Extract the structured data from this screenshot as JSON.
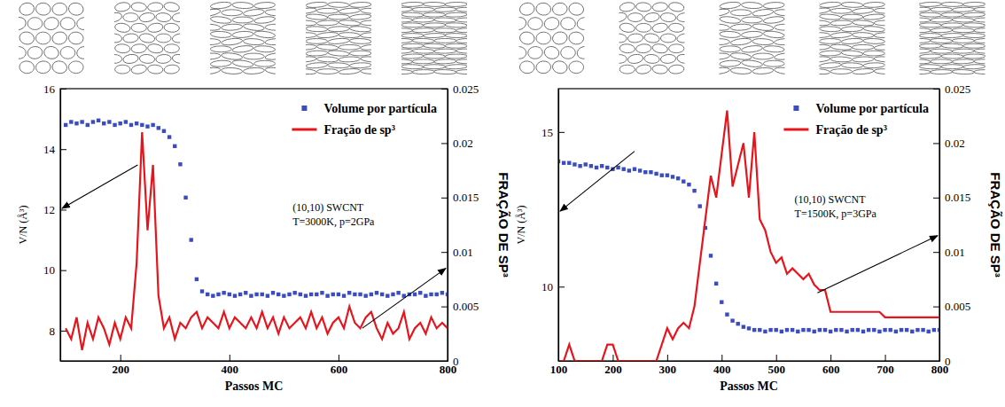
{
  "chart_data": [
    {
      "type": "line",
      "x_label": "Passos MC",
      "y_label": "V/N (Å³)",
      "y2_label": "FRAÇÃO DE SP³",
      "annotations": [
        "(10,10) SWCNT",
        "T=3000K, p=2GPa"
      ],
      "legend": "upper right",
      "x": [
        100,
        110,
        120,
        130,
        140,
        150,
        160,
        170,
        180,
        190,
        200,
        210,
        220,
        230,
        240,
        250,
        260,
        270,
        280,
        290,
        300,
        310,
        320,
        330,
        340,
        350,
        360,
        370,
        380,
        390,
        400,
        410,
        420,
        430,
        440,
        450,
        460,
        470,
        480,
        490,
        500,
        510,
        520,
        530,
        540,
        550,
        560,
        570,
        580,
        590,
        600,
        610,
        620,
        630,
        640,
        650,
        660,
        670,
        680,
        690,
        700,
        710,
        720,
        730,
        740,
        750,
        760,
        770,
        780,
        790,
        800
      ],
      "xlim": [
        90,
        800
      ],
      "xticks": [
        200,
        400,
        600,
        800
      ],
      "ylim": [
        7,
        16
      ],
      "yticks": [
        8,
        10,
        12,
        14,
        16
      ],
      "y2lim": [
        0,
        0.025
      ],
      "y2ticks": [
        0,
        0.005,
        0.01,
        0.015,
        0.02,
        0.025
      ],
      "series": [
        {
          "name": "Volume por partícula",
          "type": "scatter",
          "marker": "square",
          "color": "#3a4cc0",
          "values": [
            14.8,
            14.9,
            14.85,
            14.9,
            14.8,
            14.9,
            14.95,
            14.85,
            14.9,
            14.8,
            14.85,
            14.9,
            14.8,
            14.85,
            14.8,
            14.75,
            14.8,
            14.7,
            14.6,
            14.4,
            14.1,
            13.5,
            12.4,
            11.0,
            9.7,
            9.3,
            9.2,
            9.15,
            9.2,
            9.25,
            9.2,
            9.15,
            9.2,
            9.25,
            9.15,
            9.2,
            9.2,
            9.15,
            9.25,
            9.2,
            9.15,
            9.2,
            9.25,
            9.2,
            9.15,
            9.2,
            9.2,
            9.25,
            9.15,
            9.2,
            9.2,
            9.15,
            9.25,
            9.2,
            9.2,
            9.15,
            9.2,
            9.25,
            9.2,
            9.15,
            9.2,
            9.25,
            9.15,
            9.2,
            9.2,
            9.25,
            9.15,
            9.2,
            9.2,
            9.25,
            9.2
          ]
        },
        {
          "name": "Fração de sp³",
          "type": "line",
          "axis": "y2",
          "color": "#e8141c",
          "values": [
            0.003,
            0.002,
            0.004,
            0.001,
            0.0035,
            0.002,
            0.004,
            0.003,
            0.0015,
            0.0035,
            0.002,
            0.004,
            0.003,
            0.009,
            0.021,
            0.012,
            0.018,
            0.006,
            0.003,
            0.004,
            0.002,
            0.0035,
            0.003,
            0.004,
            0.0045,
            0.003,
            0.004,
            0.0035,
            0.003,
            0.0045,
            0.003,
            0.004,
            0.0035,
            0.003,
            0.004,
            0.003,
            0.0045,
            0.003,
            0.004,
            0.0025,
            0.004,
            0.003,
            0.0035,
            0.004,
            0.003,
            0.0045,
            0.003,
            0.004,
            0.0025,
            0.0035,
            0.004,
            0.003,
            0.005,
            0.0035,
            0.003,
            0.004,
            0.0045,
            0.003,
            0.002,
            0.0035,
            0.0025,
            0.003,
            0.0045,
            0.002,
            0.003,
            0.0035,
            0.0025,
            0.004,
            0.003,
            0.0035,
            0.003
          ]
        }
      ]
    },
    {
      "type": "line",
      "x_label": "Passos MC",
      "y_label": "V/N (Å³)",
      "y2_label": "FRAÇÃO DE SP³",
      "annotations": [
        "(10,10) SWCNT",
        "T=1500K, p=3GPa"
      ],
      "legend": "upper right",
      "x": [
        100,
        110,
        120,
        130,
        140,
        150,
        160,
        170,
        180,
        190,
        200,
        210,
        220,
        230,
        240,
        250,
        260,
        270,
        280,
        290,
        300,
        310,
        320,
        330,
        340,
        350,
        360,
        370,
        380,
        390,
        400,
        410,
        420,
        430,
        440,
        450,
        460,
        470,
        480,
        490,
        500,
        510,
        520,
        530,
        540,
        550,
        560,
        570,
        580,
        590,
        600,
        610,
        620,
        630,
        640,
        650,
        660,
        670,
        680,
        690,
        700,
        710,
        720,
        730,
        740,
        750,
        760,
        770,
        780,
        790,
        800
      ],
      "xlim": [
        100,
        800
      ],
      "xticks": [
        100,
        200,
        300,
        400,
        500,
        600,
        700,
        800
      ],
      "ylim": [
        7.6,
        16.4
      ],
      "yticks": [
        10,
        15
      ],
      "y2lim": [
        0,
        0.025
      ],
      "y2ticks": [
        0,
        0.005,
        0.01,
        0.015,
        0.02,
        0.025
      ],
      "series": [
        {
          "name": "Volume por partícula",
          "type": "scatter",
          "marker": "square",
          "color": "#3a4cc0",
          "values": [
            14.05,
            14.0,
            14.0,
            13.95,
            13.9,
            13.95,
            13.9,
            13.85,
            13.9,
            13.85,
            13.8,
            13.85,
            13.8,
            13.75,
            13.8,
            13.75,
            13.7,
            13.7,
            13.65,
            13.6,
            13.6,
            13.55,
            13.5,
            13.4,
            13.3,
            13.1,
            12.6,
            11.9,
            11.0,
            10.1,
            9.5,
            9.1,
            8.9,
            8.8,
            8.7,
            8.65,
            8.6,
            8.6,
            8.55,
            8.6,
            8.6,
            8.55,
            8.6,
            8.6,
            8.55,
            8.6,
            8.6,
            8.55,
            8.6,
            8.6,
            8.55,
            8.6,
            8.6,
            8.55,
            8.6,
            8.6,
            8.55,
            8.6,
            8.6,
            8.55,
            8.6,
            8.6,
            8.55,
            8.6,
            8.6,
            8.55,
            8.6,
            8.6,
            8.55,
            8.6,
            8.6
          ]
        },
        {
          "name": "Fração de sp³",
          "type": "line",
          "axis": "y2",
          "color": "#e8141c",
          "values": [
            0,
            0,
            0.0015,
            0,
            0,
            0,
            0,
            0,
            0,
            0.0015,
            0.0015,
            0,
            0,
            0,
            0,
            0,
            0,
            0,
            0,
            0.0015,
            0.003,
            0.002,
            0.003,
            0.0035,
            0.003,
            0.005,
            0.009,
            0.013,
            0.017,
            0.015,
            0.019,
            0.023,
            0.016,
            0.018,
            0.02,
            0.015,
            0.021,
            0.013,
            0.012,
            0.01,
            0.009,
            0.0095,
            0.008,
            0.0085,
            0.008,
            0.0075,
            0.008,
            0.007,
            0.0065,
            0.0065,
            0.0045,
            0.0045,
            0.0045,
            0.0045,
            0.0045,
            0.0045,
            0.0045,
            0.0045,
            0.0045,
            0.0045,
            0.004,
            0.004,
            0.004,
            0.004,
            0.004,
            0.004,
            0.004,
            0.004,
            0.004,
            0.004,
            0.004
          ]
        }
      ]
    }
  ]
}
